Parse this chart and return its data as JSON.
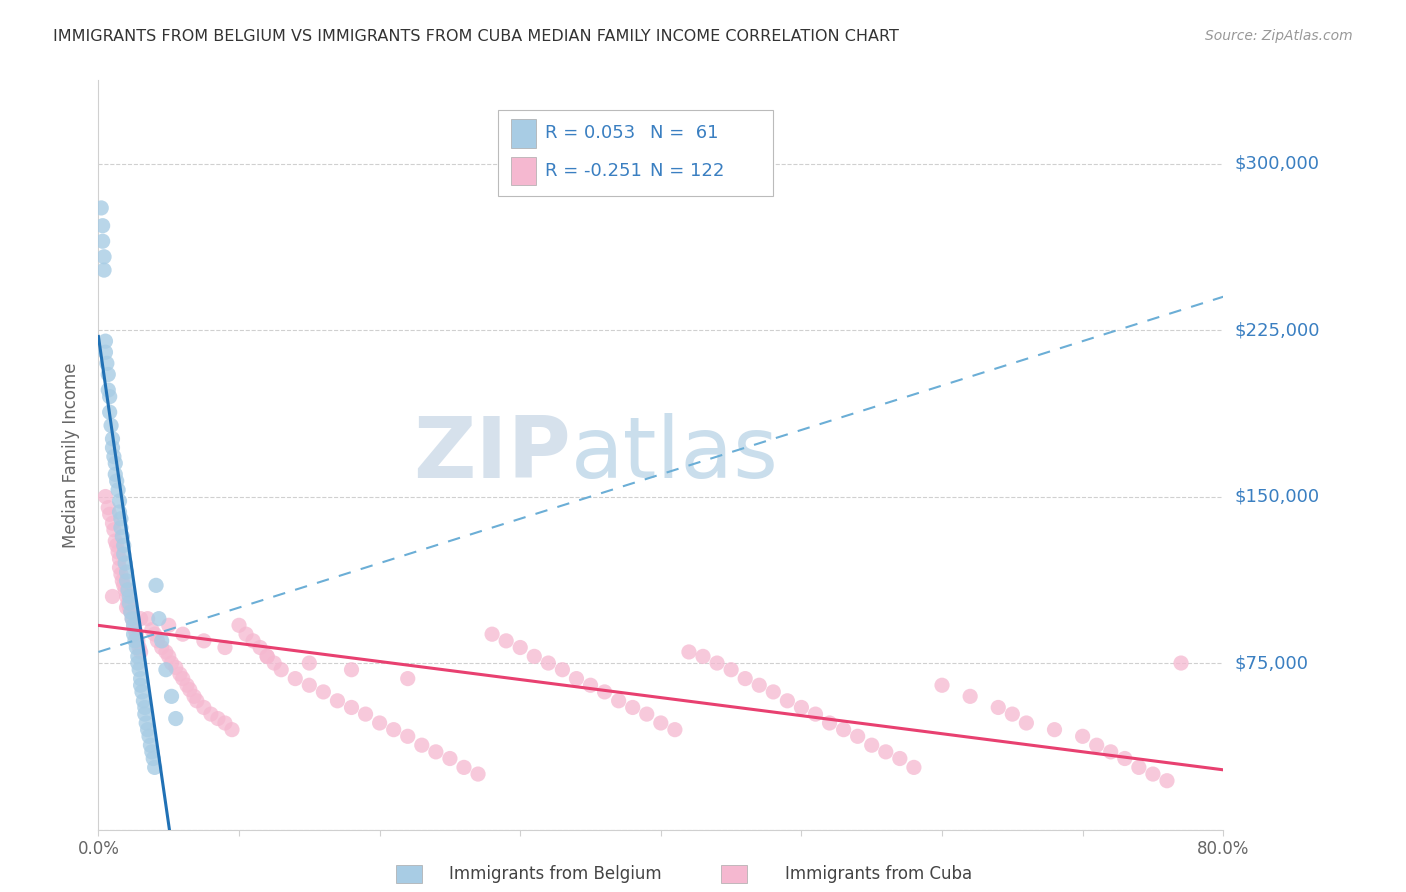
{
  "title": "IMMIGRANTS FROM BELGIUM VS IMMIGRANTS FROM CUBA MEDIAN FAMILY INCOME CORRELATION CHART",
  "source": "Source: ZipAtlas.com",
  "ylabel": "Median Family Income",
  "xlim": [
    0.0,
    0.8
  ],
  "ylim": [
    0,
    337500
  ],
  "ytick_vals": [
    75000,
    150000,
    225000,
    300000
  ],
  "ytick_labels": [
    "$75,000",
    "$150,000",
    "$225,000",
    "$300,000"
  ],
  "belgium_color": "#a8cce4",
  "cuba_color": "#f5b8d0",
  "trend_belgium_solid_color": "#2171b5",
  "trend_cuba_solid_color": "#e84070",
  "trend_dashed_color": "#6baed6",
  "r_belgium": 0.053,
  "n_belgium": 61,
  "r_cuba": -0.251,
  "n_cuba": 122,
  "watermark_zip_color": "#c8d8e8",
  "watermark_atlas_color": "#a0c4e0",
  "grid_color": "#d0d0d0",
  "background_color": "#ffffff",
  "title_color": "#333333",
  "source_color": "#999999",
  "ylabel_color": "#666666",
  "tick_color": "#666666",
  "legend_blue_color": "#3a7fc1",
  "legend_dark_color": "#333333",
  "bel_x": [
    0.002,
    0.003,
    0.003,
    0.004,
    0.004,
    0.005,
    0.005,
    0.006,
    0.007,
    0.007,
    0.008,
    0.008,
    0.009,
    0.01,
    0.01,
    0.011,
    0.012,
    0.012,
    0.013,
    0.014,
    0.015,
    0.015,
    0.016,
    0.016,
    0.017,
    0.018,
    0.018,
    0.019,
    0.02,
    0.02,
    0.021,
    0.022,
    0.022,
    0.023,
    0.024,
    0.025,
    0.025,
    0.026,
    0.027,
    0.028,
    0.028,
    0.029,
    0.03,
    0.03,
    0.031,
    0.032,
    0.033,
    0.033,
    0.034,
    0.035,
    0.036,
    0.037,
    0.038,
    0.039,
    0.04,
    0.041,
    0.043,
    0.045,
    0.048,
    0.052,
    0.055
  ],
  "bel_y": [
    280000,
    272000,
    265000,
    258000,
    252000,
    220000,
    215000,
    210000,
    205000,
    198000,
    195000,
    188000,
    182000,
    176000,
    172000,
    168000,
    165000,
    160000,
    157000,
    153000,
    148000,
    143000,
    140000,
    136000,
    132000,
    128000,
    124000,
    120000,
    116000,
    112000,
    108000,
    105000,
    102000,
    98000,
    95000,
    92000,
    88000,
    85000,
    82000,
    78000,
    75000,
    72000,
    68000,
    65000,
    62000,
    58000,
    55000,
    52000,
    48000,
    45000,
    42000,
    38000,
    35000,
    32000,
    28000,
    110000,
    95000,
    85000,
    72000,
    60000,
    50000
  ],
  "cuba_x": [
    0.005,
    0.007,
    0.008,
    0.01,
    0.011,
    0.012,
    0.013,
    0.014,
    0.015,
    0.015,
    0.016,
    0.017,
    0.018,
    0.019,
    0.02,
    0.021,
    0.022,
    0.023,
    0.024,
    0.025,
    0.026,
    0.027,
    0.028,
    0.029,
    0.03,
    0.035,
    0.038,
    0.04,
    0.042,
    0.045,
    0.048,
    0.05,
    0.052,
    0.055,
    0.058,
    0.06,
    0.063,
    0.065,
    0.068,
    0.07,
    0.075,
    0.08,
    0.085,
    0.09,
    0.095,
    0.1,
    0.105,
    0.11,
    0.115,
    0.12,
    0.125,
    0.13,
    0.14,
    0.15,
    0.16,
    0.17,
    0.18,
    0.19,
    0.2,
    0.21,
    0.22,
    0.23,
    0.24,
    0.25,
    0.26,
    0.27,
    0.28,
    0.29,
    0.3,
    0.31,
    0.32,
    0.33,
    0.34,
    0.35,
    0.36,
    0.37,
    0.38,
    0.39,
    0.4,
    0.41,
    0.42,
    0.43,
    0.44,
    0.45,
    0.46,
    0.47,
    0.48,
    0.49,
    0.5,
    0.51,
    0.52,
    0.53,
    0.54,
    0.55,
    0.56,
    0.57,
    0.58,
    0.6,
    0.62,
    0.64,
    0.65,
    0.66,
    0.68,
    0.7,
    0.71,
    0.72,
    0.73,
    0.74,
    0.75,
    0.76,
    0.77,
    0.01,
    0.02,
    0.03,
    0.05,
    0.06,
    0.075,
    0.09,
    0.12,
    0.15,
    0.18,
    0.22
  ],
  "cuba_y": [
    150000,
    145000,
    142000,
    138000,
    135000,
    130000,
    128000,
    125000,
    122000,
    118000,
    115000,
    112000,
    110000,
    108000,
    105000,
    102000,
    100000,
    98000,
    95000,
    92000,
    90000,
    88000,
    85000,
    82000,
    80000,
    95000,
    90000,
    88000,
    85000,
    82000,
    80000,
    78000,
    75000,
    73000,
    70000,
    68000,
    65000,
    63000,
    60000,
    58000,
    55000,
    52000,
    50000,
    48000,
    45000,
    92000,
    88000,
    85000,
    82000,
    78000,
    75000,
    72000,
    68000,
    65000,
    62000,
    58000,
    55000,
    52000,
    48000,
    45000,
    42000,
    38000,
    35000,
    32000,
    28000,
    25000,
    88000,
    85000,
    82000,
    78000,
    75000,
    72000,
    68000,
    65000,
    62000,
    58000,
    55000,
    52000,
    48000,
    45000,
    80000,
    78000,
    75000,
    72000,
    68000,
    65000,
    62000,
    58000,
    55000,
    52000,
    48000,
    45000,
    42000,
    38000,
    35000,
    32000,
    28000,
    65000,
    60000,
    55000,
    52000,
    48000,
    45000,
    42000,
    38000,
    35000,
    32000,
    28000,
    25000,
    22000,
    75000,
    105000,
    100000,
    95000,
    92000,
    88000,
    85000,
    82000,
    78000,
    75000,
    72000,
    68000
  ]
}
